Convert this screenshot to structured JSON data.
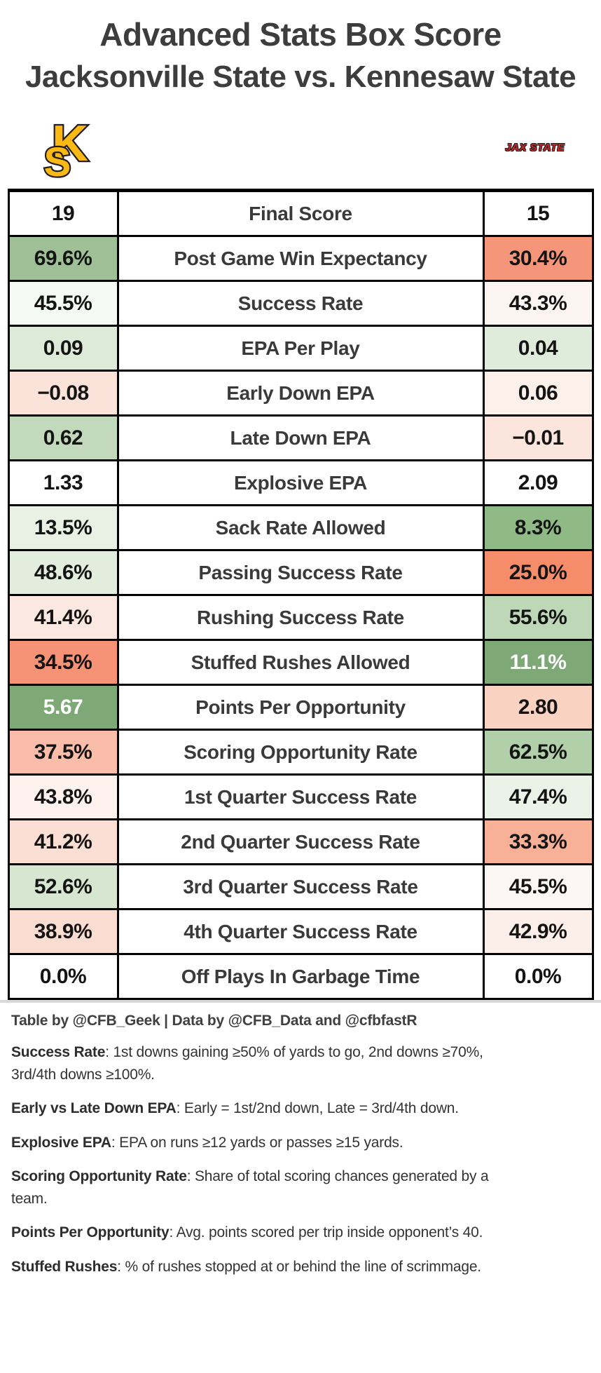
{
  "page": {
    "title": "Advanced Stats Box Score",
    "subtitle": "Jacksonville State vs. Kennesaw State",
    "credit": "Table by @CFB_Geek | Data by @CFB_Data and @cfbfastR"
  },
  "logos": {
    "kennesaw_monogram_k": "K",
    "kennesaw_monogram_s": "S",
    "kennesaw_gold": "#FDB913",
    "kennesaw_outline": "#231F20",
    "jax_state_text": "JAX STATE",
    "jax_state_red": "#D2232A"
  },
  "chart_data": {
    "type": "table",
    "title": "Advanced Stats Box Score",
    "subtitle": "Jacksonville State vs. Kennesaw State",
    "left_team": "Kennesaw State",
    "right_team": "Jacksonville State",
    "legend": "green = good, red = bad",
    "header": {
      "left": "19",
      "center": "Final Score",
      "right": "15"
    },
    "rows": [
      {
        "metric": "Post Game Win Expectancy",
        "left": "69.6%",
        "right": "30.4%",
        "left_bg": "#9FC096",
        "right_bg": "#F5957A"
      },
      {
        "metric": "Success Rate",
        "left": "45.5%",
        "right": "43.3%",
        "left_bg": "#F6FAF4",
        "right_bg": "#FCF4F1"
      },
      {
        "metric": "EPA Per Play",
        "left": "0.09",
        "right": "0.04",
        "left_bg": "#DCEAD7",
        "right_bg": "#E0ECDB"
      },
      {
        "metric": "Early Down EPA",
        "left": "−0.08",
        "right": "0.06",
        "left_bg": "#FBE3DA",
        "right_bg": "#FCF0EB"
      },
      {
        "metric": "Late Down EPA",
        "left": "0.62",
        "right": "−0.01",
        "left_bg": "#C2D9BB",
        "right_bg": "#FBE5DC"
      },
      {
        "metric": "Explosive EPA",
        "left": "1.33",
        "right": "2.09",
        "left_bg": "#FFFFFF",
        "right_bg": "#FFFFFF"
      },
      {
        "metric": "Sack Rate Allowed",
        "left": "13.5%",
        "right": "8.3%",
        "left_bg": "#E8F1E4",
        "right_bg": "#8FBA86"
      },
      {
        "metric": "Passing Success Rate",
        "left": "48.6%",
        "right": "25.0%",
        "left_bg": "#E2EDDD",
        "right_bg": "#F58D6B"
      },
      {
        "metric": "Rushing Success Rate",
        "left": "41.4%",
        "right": "55.6%",
        "left_bg": "#FBE8E0",
        "right_bg": "#BED7B6"
      },
      {
        "metric": "Stuffed Rushes Allowed",
        "left": "34.5%",
        "right": "11.1%",
        "left_bg": "#F69276",
        "right_bg": "#7FA877",
        "right_fg": "#FFFFFF"
      },
      {
        "metric": "Points Per Opportunity",
        "left": "5.67",
        "right": "2.80",
        "left_bg": "#7FA877",
        "left_fg": "#FFFFFF",
        "right_bg": "#FAD2C2"
      },
      {
        "metric": "Scoring Opportunity Rate",
        "left": "37.5%",
        "right": "62.5%",
        "left_bg": "#F9BDA9",
        "right_bg": "#B1D0A9"
      },
      {
        "metric": "1st Quarter Success Rate",
        "left": "43.8%",
        "right": "47.4%",
        "left_bg": "#FDF2EE",
        "right_bg": "#EBF3E8"
      },
      {
        "metric": "2nd Quarter Success Rate",
        "left": "41.2%",
        "right": "33.3%",
        "left_bg": "#FBDFD4",
        "right_bg": "#F8B096"
      },
      {
        "metric": "3rd Quarter Success Rate",
        "left": "52.6%",
        "right": "45.5%",
        "left_bg": "#D7E6D1",
        "right_bg": "#FCF7F4"
      },
      {
        "metric": "4th Quarter Success Rate",
        "left": "38.9%",
        "right": "42.9%",
        "left_bg": "#FBDCD1",
        "right_bg": "#FCEEE8"
      },
      {
        "metric": "Off Plays In Garbage Time",
        "left": "0.0%",
        "right": "0.0%",
        "left_bg": "#FFFFFF",
        "right_bg": "#FFFFFF"
      }
    ]
  },
  "footnotes": [
    {
      "label": "Success Rate",
      "text": ": 1st downs gaining ≥50% of yards to go, 2nd downs ≥70%, 3rd/4th downs ≥100%."
    },
    {
      "label": "Early vs Late Down EPA",
      "text": ": Early = 1st/2nd down, Late = 3rd/4th down."
    },
    {
      "label": "Explosive EPA",
      "text": ": EPA on runs ≥12 yards or passes ≥15 yards."
    },
    {
      "label": "Scoring Opportunity Rate",
      "text": ": Share of total scoring chances generated by a team."
    },
    {
      "label": "Points Per Opportunity",
      "text": ": Avg. points scored per trip inside opponent’s 40."
    },
    {
      "label": "Stuffed Rushes",
      "text": ": % of rushes stopped at or behind the line of scrimmage."
    }
  ]
}
